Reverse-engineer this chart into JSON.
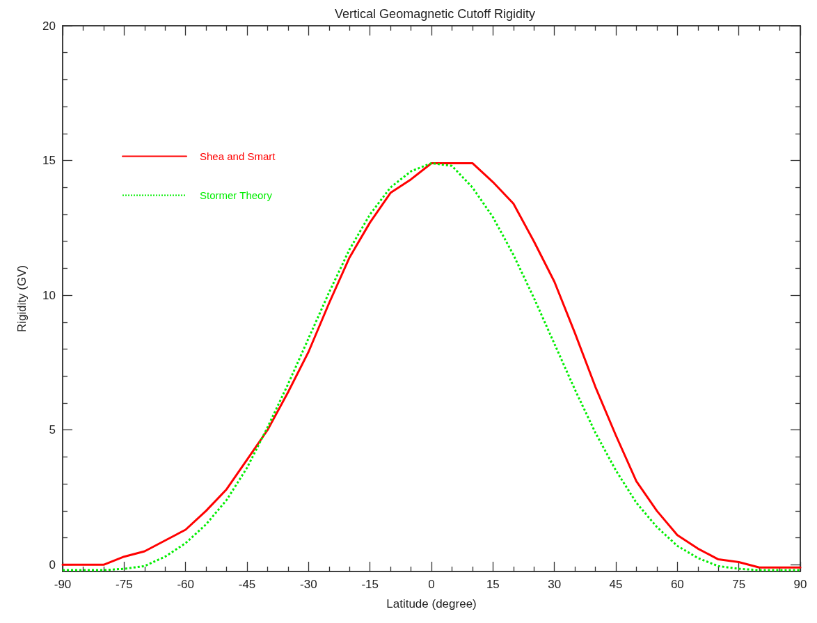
{
  "chart_data": {
    "type": "line",
    "title": "Vertical Geomagnetic Cutoff Rigidity",
    "xlabel": "Latitude (degree)",
    "ylabel": "Rigidity (GV)",
    "xlim": [
      -90,
      90
    ],
    "xticks": [
      -90,
      -75,
      -60,
      -45,
      -30,
      -15,
      0,
      15,
      30,
      45,
      60,
      75,
      90
    ],
    "ylim": [
      -0.25,
      20
    ],
    "yticks": [
      0,
      5,
      10,
      15,
      20
    ],
    "grid": false,
    "legend": "top left",
    "marker": "none",
    "series": [
      {
        "name": "Shea and Smart",
        "color": "#ff0000",
        "line_style": "solid",
        "x": [
          -90,
          -80,
          -75,
          -70,
          -65,
          -60,
          -55,
          -50,
          -45,
          -40,
          -35,
          -30,
          -25,
          -20,
          -15,
          -10,
          -5,
          0,
          10,
          15,
          20,
          25,
          30,
          35,
          40,
          45,
          50,
          55,
          60,
          65,
          70,
          75,
          80,
          90
        ],
        "values": [
          0,
          0,
          0.3,
          0.5,
          0.9,
          1.3,
          2.0,
          2.8,
          3.9,
          5.0,
          6.4,
          7.9,
          9.7,
          11.4,
          12.7,
          13.8,
          14.3,
          14.9,
          14.9,
          14.2,
          13.4,
          12.0,
          10.5,
          8.6,
          6.6,
          4.8,
          3.1,
          2.0,
          1.1,
          0.6,
          0.2,
          0.1,
          -0.1,
          -0.1
        ]
      },
      {
        "name": "Stormer Theory",
        "color": "#00ee00",
        "line_style": "dotted",
        "x": [
          -90,
          -85,
          -80,
          -75,
          -70,
          -65,
          -60,
          -55,
          -50,
          -45,
          -40,
          -35,
          -30,
          -25,
          -20,
          -15,
          -10,
          -5,
          0,
          5,
          10,
          15,
          20,
          25,
          30,
          35,
          40,
          45,
          50,
          55,
          60,
          65,
          70,
          75,
          80,
          85,
          90
        ],
        "values": [
          -0.2,
          -0.2,
          -0.2,
          -0.15,
          -0.05,
          0.3,
          0.8,
          1.5,
          2.4,
          3.6,
          5.1,
          6.7,
          8.4,
          10.1,
          11.7,
          13.0,
          14.0,
          14.6,
          14.9,
          14.8,
          14.0,
          12.9,
          11.5,
          9.9,
          8.2,
          6.5,
          4.9,
          3.5,
          2.3,
          1.4,
          0.7,
          0.25,
          -0.05,
          -0.15,
          -0.2,
          -0.2,
          -0.2
        ]
      }
    ]
  }
}
